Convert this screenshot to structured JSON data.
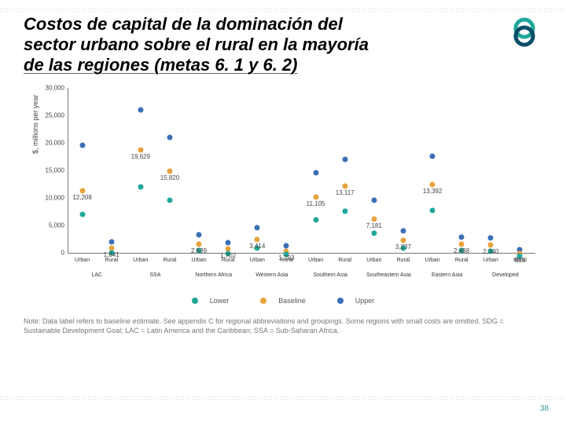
{
  "title_l1": "Costos de capital de la dominación del",
  "title_l2": "sector urbano sobre el rural en la mayoría",
  "title_l3": "de las regiones (metas 6. 1 y 6. 2)",
  "logo_colors": {
    "teal": "#1fa89a",
    "navy": "#0a4d68"
  },
  "page_number": "38",
  "note": "Note: Data label refers to baseline estimate. See appendix C for regional abbreviations and groupings. Some regions with small costs are omitted. SDG = Sustainable Development Goal; LAC = Latin America and the Caribbean; SSA = Sub-Saharan Africa.",
  "chart": {
    "type": "categorical-scatter",
    "ylabel": "$, millions per year",
    "ylim": [
      0,
      30000
    ],
    "ytick_step": 5000,
    "yticks": [
      "0",
      "5,000",
      "10,000",
      "15,000",
      "20,000",
      "25,000",
      "30,000"
    ],
    "colors": {
      "lower": "#1fa89a",
      "baseline": "#e8a23d",
      "upper": "#3b6fb6",
      "axis": "#777"
    },
    "legend": [
      {
        "key": "lower",
        "label": "Lower"
      },
      {
        "key": "baseline",
        "label": "Baseline"
      },
      {
        "key": "upper",
        "label": "Upper"
      }
    ],
    "regions": [
      "LAC",
      "SSA",
      "Northern Africa",
      "Western Asia",
      "Southern Asia",
      "Southeastern Asia",
      "Eastern Asia",
      "Developed"
    ],
    "sub": [
      "Urban",
      "Rural"
    ],
    "series": [
      {
        "lower": 8000,
        "baseline": 12208,
        "upper": 20500,
        "label": "12,208"
      },
      {
        "lower": 1000,
        "baseline": 1841,
        "upper": 3000,
        "label": "1,841"
      },
      {
        "lower": 13000,
        "baseline": 19629,
        "upper": 27000,
        "label": "19,629"
      },
      {
        "lower": 10500,
        "baseline": 15820,
        "upper": 22000,
        "label": "15,820"
      },
      {
        "lower": 1400,
        "baseline": 2539,
        "upper": 4200,
        "label": "2,539"
      },
      {
        "lower": 900,
        "baseline": 1702,
        "upper": 2800,
        "label": "1,702"
      },
      {
        "lower": 1900,
        "baseline": 3414,
        "upper": 5600,
        "label": "3,414"
      },
      {
        "lower": 700,
        "baseline": 1293,
        "upper": 2200,
        "label": "1,293"
      },
      {
        "lower": 7000,
        "baseline": 11105,
        "upper": 15500,
        "label": "11,105"
      },
      {
        "lower": 8500,
        "baseline": 13117,
        "upper": 18000,
        "label": "13,117"
      },
      {
        "lower": 4500,
        "baseline": 7181,
        "upper": 10500,
        "label": "7,181"
      },
      {
        "lower": 1900,
        "baseline": 3237,
        "upper": 5000,
        "label": "3,237"
      },
      {
        "lower": 8700,
        "baseline": 13392,
        "upper": 18500,
        "label": "13,392"
      },
      {
        "lower": 1400,
        "baseline": 2498,
        "upper": 3800,
        "label": "2,498"
      },
      {
        "lower": 1300,
        "baseline": 2340,
        "upper": 3700,
        "label": "2,340"
      },
      {
        "lower": 450,
        "baseline": 855,
        "upper": 1500,
        "label": "855"
      }
    ]
  }
}
